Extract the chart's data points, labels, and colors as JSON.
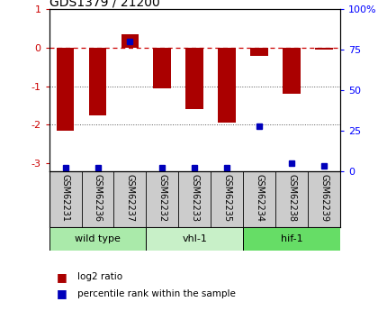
{
  "title": "GDS1379 / 21200",
  "samples": [
    "GSM62231",
    "GSM62236",
    "GSM62237",
    "GSM62232",
    "GSM62233",
    "GSM62235",
    "GSM62234",
    "GSM62238",
    "GSM62239"
  ],
  "log2_ratio": [
    -2.15,
    -1.75,
    0.35,
    -1.05,
    -1.6,
    -1.95,
    -0.2,
    -1.2,
    -0.05
  ],
  "percentile_rank": [
    2,
    2,
    80,
    2,
    2,
    2,
    28,
    5,
    3
  ],
  "groups": [
    {
      "label": "wild type",
      "indices": [
        0,
        1,
        2
      ],
      "color": "#aaeaaa"
    },
    {
      "label": "vhl-1",
      "indices": [
        3,
        4,
        5
      ],
      "color": "#c8f0c8"
    },
    {
      "label": "hif-1",
      "indices": [
        6,
        7,
        8
      ],
      "color": "#66dd66"
    }
  ],
  "bar_color": "#aa0000",
  "percentile_color": "#0000bb",
  "ylim": [
    -3.2,
    1.0
  ],
  "y_ticks": [
    1,
    0,
    -1,
    -2,
    -3
  ],
  "y2_ticks": [
    100,
    75,
    50,
    25,
    0
  ],
  "y2_tick_labels": [
    "100%",
    "75",
    "50",
    "25",
    "0"
  ],
  "hline_color": "#cc0000",
  "dot_line_color": "#555555",
  "sample_box_color": "#cccccc",
  "legend_items": [
    {
      "label": "log2 ratio",
      "color": "#aa0000"
    },
    {
      "label": "percentile rank within the sample",
      "color": "#0000bb"
    }
  ]
}
